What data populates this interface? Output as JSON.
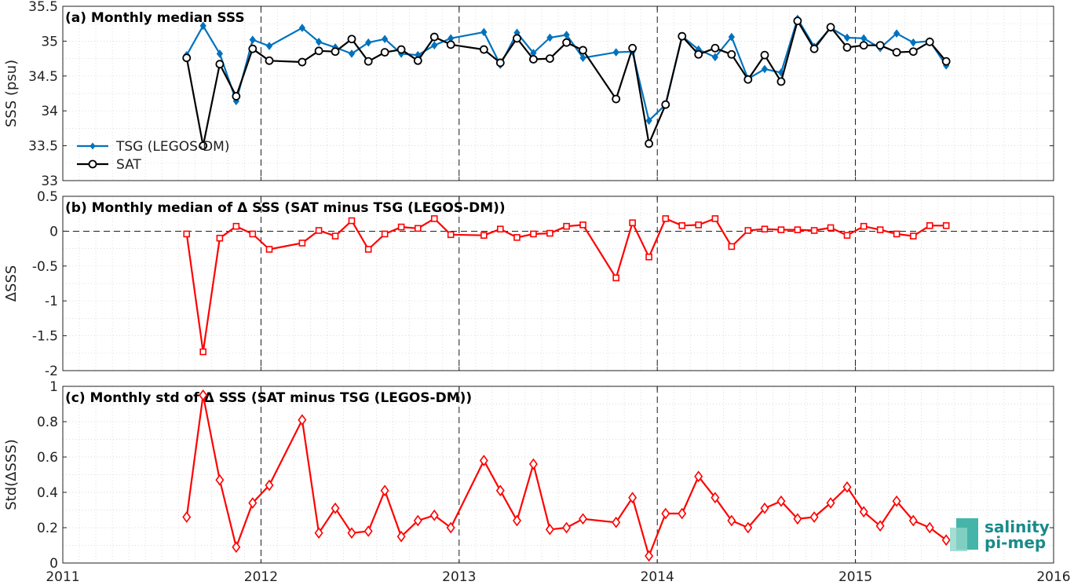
{
  "x_ticks": [
    "2011",
    "2012",
    "2013",
    "2014",
    "2015",
    "2016"
  ],
  "logo": {
    "line1": "salinity",
    "line2": "pi-mep",
    "color": "#1a8a8a"
  },
  "chart_data": [
    {
      "type": "line",
      "title": "(a) Monthly median SSS",
      "ylabel": "SSS (psu)",
      "xlim": [
        2011,
        2016
      ],
      "ylim": [
        33,
        35.5
      ],
      "yticks": [
        "33",
        "33.5",
        "34",
        "34.5",
        "35",
        "35.5"
      ],
      "grid": true,
      "legend": "bottom-left",
      "series": [
        {
          "name": "TSG (LEGOS-DM)",
          "color": "#0072BD",
          "marker": "diamond-filled",
          "x": [
            2011.625,
            2011.708,
            2011.792,
            2011.875,
            2011.958,
            2012.042,
            2012.208,
            2012.292,
            2012.375,
            2012.458,
            2012.542,
            2012.625,
            2012.708,
            2012.792,
            2012.875,
            2012.958,
            2013.125,
            2013.208,
            2013.292,
            2013.375,
            2013.458,
            2013.542,
            2013.625,
            2013.792,
            2013.875,
            2013.958,
            2014.042,
            2014.125,
            2014.208,
            2014.292,
            2014.375,
            2014.458,
            2014.542,
            2014.625,
            2014.708,
            2014.792,
            2014.875,
            2014.958,
            2015.042,
            2015.125,
            2015.208,
            2015.292,
            2015.375,
            2015.458
          ],
          "y": [
            34.8,
            35.22,
            34.82,
            34.14,
            35.02,
            34.93,
            35.19,
            34.99,
            34.91,
            34.82,
            34.98,
            35.03,
            34.82,
            34.8,
            34.94,
            35.04,
            35.13,
            34.66,
            35.12,
            34.83,
            35.05,
            35.09,
            34.76,
            34.84,
            34.85,
            33.86,
            34.09,
            35.07,
            34.88,
            34.77,
            35.06,
            34.46,
            34.6,
            34.55,
            35.32,
            34.92,
            35.19,
            35.05,
            35.04,
            34.9,
            35.11,
            34.98,
            35.0,
            34.65
          ]
        },
        {
          "name": "SAT",
          "color": "#000000",
          "marker": "circle-open",
          "x": [
            2011.625,
            2011.708,
            2011.792,
            2011.875,
            2011.958,
            2012.042,
            2012.208,
            2012.292,
            2012.375,
            2012.458,
            2012.542,
            2012.625,
            2012.708,
            2012.792,
            2012.875,
            2012.958,
            2013.125,
            2013.208,
            2013.292,
            2013.375,
            2013.458,
            2013.542,
            2013.625,
            2013.792,
            2013.875,
            2013.958,
            2014.042,
            2014.125,
            2014.208,
            2014.292,
            2014.375,
            2014.458,
            2014.542,
            2014.625,
            2014.708,
            2014.792,
            2014.875,
            2014.958,
            2015.042,
            2015.125,
            2015.208,
            2015.292,
            2015.375,
            2015.458
          ],
          "y": [
            34.76,
            33.5,
            34.67,
            34.21,
            34.89,
            34.72,
            34.7,
            34.86,
            34.85,
            35.03,
            34.71,
            34.84,
            34.88,
            34.72,
            35.06,
            34.95,
            34.88,
            34.69,
            35.04,
            34.74,
            34.75,
            34.98,
            34.87,
            34.17,
            34.9,
            33.53,
            34.09,
            35.07,
            34.81,
            34.9,
            34.81,
            34.45,
            34.8,
            34.42,
            35.29,
            34.89,
            35.2,
            34.91,
            34.94,
            34.94,
            34.84,
            34.85,
            34.99,
            34.71
          ]
        }
      ]
    },
    {
      "type": "line",
      "title": "(b) Monthly median of Δ SSS (SAT minus TSG (LEGOS-DM))",
      "ylabel": "ΔSSS",
      "xlim": [
        2011,
        2016
      ],
      "ylim": [
        -2,
        0.5
      ],
      "yticks": [
        "-2",
        "-1.5",
        "-1",
        "-0.5",
        "0",
        "0.5"
      ],
      "grid": true,
      "series": [
        {
          "color": "#FF0000",
          "marker": "square-open",
          "x": [
            2011.625,
            2011.708,
            2011.792,
            2011.875,
            2011.958,
            2012.042,
            2012.208,
            2012.292,
            2012.375,
            2012.458,
            2012.542,
            2012.625,
            2012.708,
            2012.792,
            2012.875,
            2012.958,
            2013.125,
            2013.208,
            2013.292,
            2013.375,
            2013.458,
            2013.542,
            2013.625,
            2013.792,
            2013.875,
            2013.958,
            2014.042,
            2014.125,
            2014.208,
            2014.292,
            2014.375,
            2014.458,
            2014.542,
            2014.625,
            2014.708,
            2014.792,
            2014.875,
            2014.958,
            2015.042,
            2015.125,
            2015.208,
            2015.292,
            2015.375,
            2015.458
          ],
          "y": [
            -0.04,
            -1.73,
            -0.1,
            0.07,
            -0.04,
            -0.26,
            -0.17,
            0.01,
            -0.07,
            0.15,
            -0.26,
            -0.04,
            0.06,
            0.04,
            0.18,
            -0.05,
            -0.06,
            0.03,
            -0.09,
            -0.04,
            -0.03,
            0.07,
            0.09,
            -0.67,
            0.12,
            -0.37,
            0.18,
            0.08,
            0.09,
            0.18,
            -0.22,
            0.01,
            0.03,
            0.02,
            0.02,
            0.01,
            0.05,
            -0.06,
            0.07,
            0.02,
            -0.04,
            -0.07,
            0.08,
            0.08
          ]
        }
      ]
    },
    {
      "type": "line",
      "title": "(c) Monthly std of Δ SSS (SAT minus TSG (LEGOS-DM))",
      "ylabel": "Std(ΔSSS)",
      "xlim": [
        2011,
        2016
      ],
      "ylim": [
        0,
        1
      ],
      "yticks": [
        "0",
        "0.2",
        "0.4",
        "0.6",
        "0.8",
        "1"
      ],
      "grid": true,
      "series": [
        {
          "color": "#FF0000",
          "marker": "diamond-open",
          "x": [
            2011.625,
            2011.708,
            2011.792,
            2011.875,
            2011.958,
            2012.042,
            2012.208,
            2012.292,
            2012.375,
            2012.458,
            2012.542,
            2012.625,
            2012.708,
            2012.792,
            2012.875,
            2012.958,
            2013.125,
            2013.208,
            2013.292,
            2013.375,
            2013.458,
            2013.542,
            2013.625,
            2013.792,
            2013.875,
            2013.958,
            2014.042,
            2014.125,
            2014.208,
            2014.292,
            2014.375,
            2014.458,
            2014.542,
            2014.625,
            2014.708,
            2014.792,
            2014.875,
            2014.958,
            2015.042,
            2015.125,
            2015.208,
            2015.292,
            2015.375,
            2015.458
          ],
          "y": [
            0.26,
            0.95,
            0.47,
            0.09,
            0.34,
            0.44,
            0.81,
            0.17,
            0.31,
            0.17,
            0.18,
            0.41,
            0.15,
            0.24,
            0.27,
            0.2,
            0.58,
            0.41,
            0.24,
            0.56,
            0.19,
            0.2,
            0.25,
            0.23,
            0.37,
            0.04,
            0.28,
            0.28,
            0.49,
            0.37,
            0.24,
            0.2,
            0.31,
            0.35,
            0.25,
            0.26,
            0.34,
            0.43,
            0.29,
            0.21,
            0.35,
            0.24,
            0.2,
            0.13
          ]
        }
      ]
    }
  ]
}
